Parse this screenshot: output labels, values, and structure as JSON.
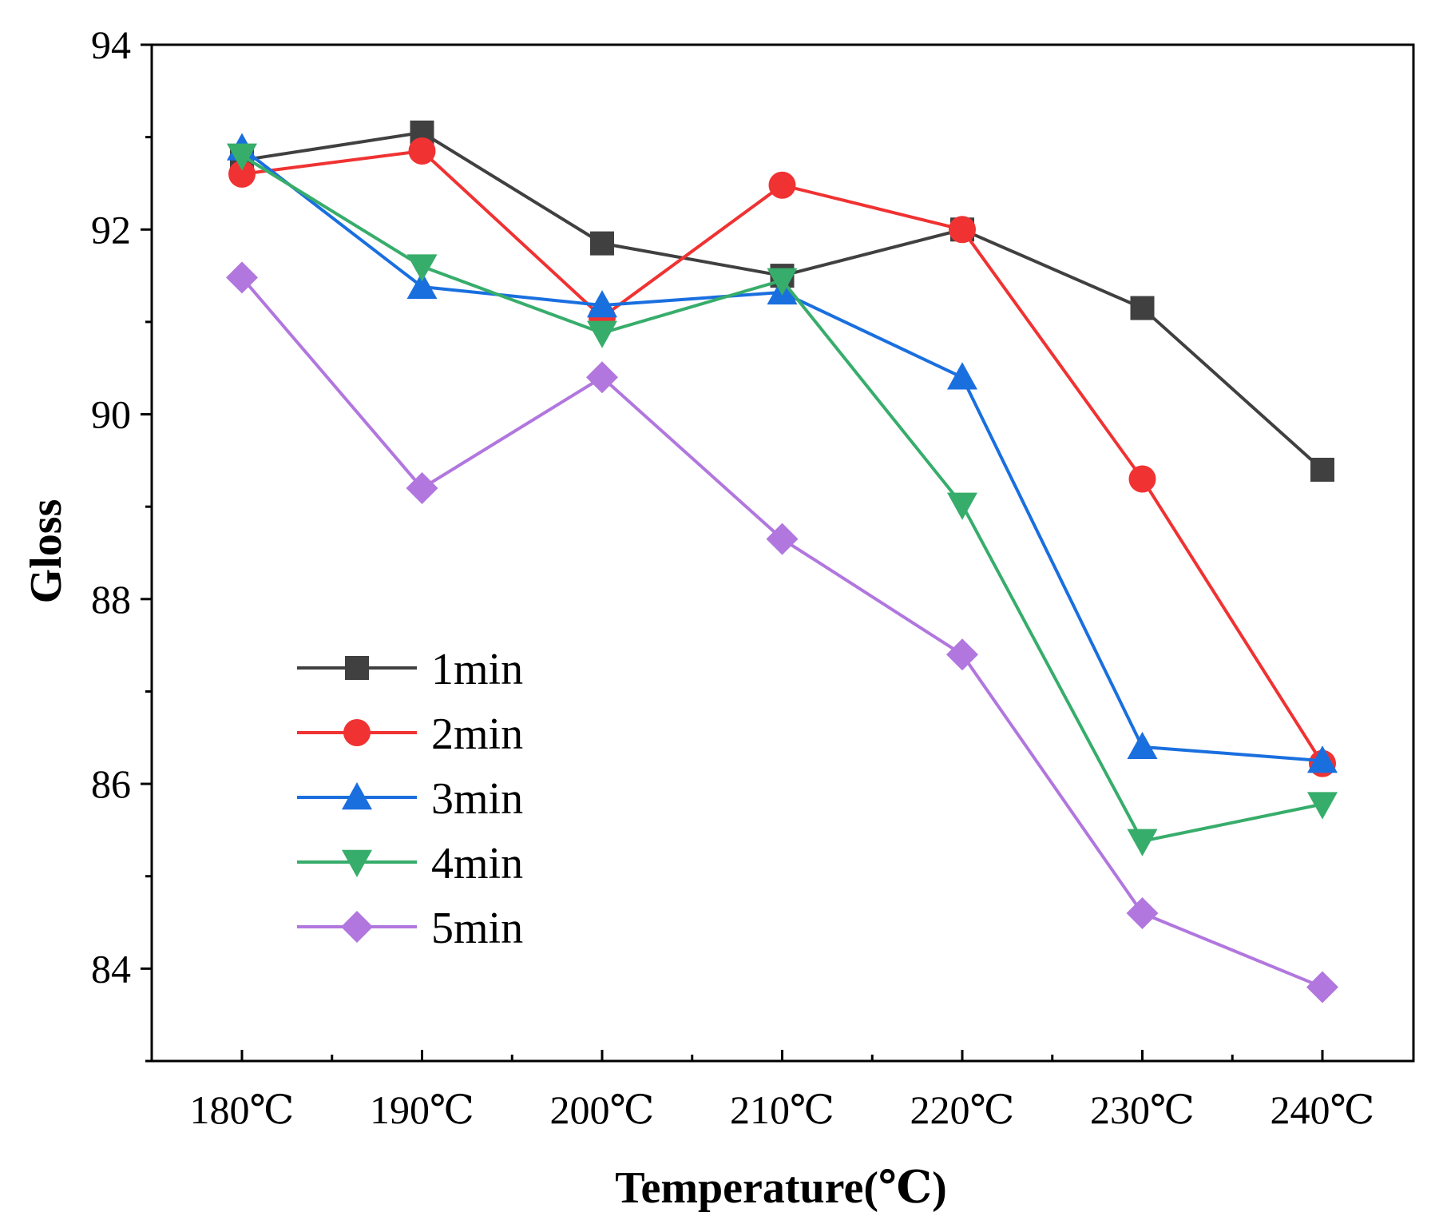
{
  "chart_data": {
    "type": "line",
    "title": "",
    "xlabel": "Temperature(℃)",
    "ylabel": "Gloss",
    "categories": [
      "180℃",
      "190℃",
      "200℃",
      "210℃",
      "220℃",
      "230℃",
      "240℃"
    ],
    "ylim": [
      83,
      94
    ],
    "yticks": [
      "84",
      "86",
      "88",
      "90",
      "92",
      "94"
    ],
    "grid": false,
    "legend_position": "lower-left",
    "series": [
      {
        "name": "1min",
        "color": "#404040",
        "marker": "square",
        "values": [
          92.75,
          93.05,
          91.85,
          91.5,
          92.0,
          91.15,
          89.4
        ]
      },
      {
        "name": "2min",
        "color": "#f03232",
        "marker": "circle",
        "values": [
          92.6,
          92.85,
          91.05,
          92.48,
          92.0,
          89.3,
          86.22
        ]
      },
      {
        "name": "3min",
        "color": "#1a6fdf",
        "marker": "triangle-up",
        "values": [
          92.88,
          91.38,
          91.18,
          91.32,
          90.4,
          86.4,
          86.25
        ]
      },
      {
        "name": "4min",
        "color": "#37ad6b",
        "marker": "triangle-down",
        "values": [
          92.8,
          91.6,
          90.88,
          91.45,
          89.02,
          85.38,
          85.78
        ]
      },
      {
        "name": "5min",
        "color": "#b177de",
        "marker": "diamond",
        "values": [
          91.48,
          89.2,
          90.4,
          88.65,
          87.4,
          84.6,
          83.8
        ]
      }
    ]
  }
}
